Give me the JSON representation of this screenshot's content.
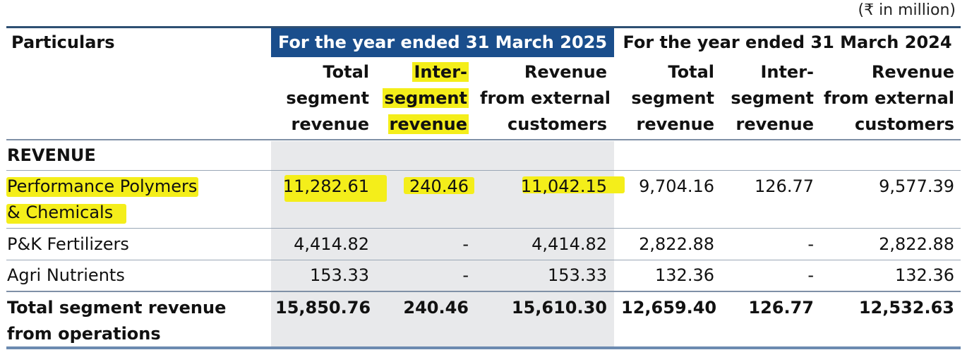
{
  "unit_note": "(₹ in million)",
  "header": {
    "particulars": "Particulars",
    "fy2025": "For the year ended 31 March 2025",
    "fy2024": "For the year ended 31 March 2024",
    "columns": [
      {
        "lines": [
          "Total",
          "segment",
          "revenue"
        ]
      },
      {
        "lines": [
          "Inter-",
          "segment",
          "revenue"
        ]
      },
      {
        "lines": [
          "Revenue",
          "from external",
          "customers"
        ]
      },
      {
        "lines": [
          "Total",
          "segment",
          "revenue"
        ]
      },
      {
        "lines": [
          "Inter-",
          "segment",
          "revenue"
        ]
      },
      {
        "lines": [
          "Revenue",
          "from external",
          "customers"
        ]
      }
    ]
  },
  "section_label": "REVENUE",
  "rows": [
    {
      "label_lines": [
        "Performance Polymers",
        "& Chemicals"
      ],
      "values": [
        "11,282.61",
        "240.46",
        "11,042.15",
        "9,704.16",
        "126.77",
        "9,577.39"
      ]
    },
    {
      "label_lines": [
        "P&K Fertilizers"
      ],
      "values": [
        "4,414.82",
        "-",
        "4,414.82",
        "2,822.88",
        "-",
        "2,822.88"
      ]
    },
    {
      "label_lines": [
        "Agri Nutrients"
      ],
      "values": [
        "153.33",
        "-",
        "153.33",
        "132.36",
        "-",
        "132.36"
      ]
    }
  ],
  "total": {
    "label_lines": [
      "Total segment revenue",
      "from operations"
    ],
    "values": [
      "15,850.76",
      "240.46",
      "15,610.30",
      "12,659.40",
      "126.77",
      "12,532.63"
    ]
  },
  "colors": {
    "header_blue": "#1a4e8c",
    "highlight": "#f4ee1a",
    "shade": "#e8e9eb"
  }
}
